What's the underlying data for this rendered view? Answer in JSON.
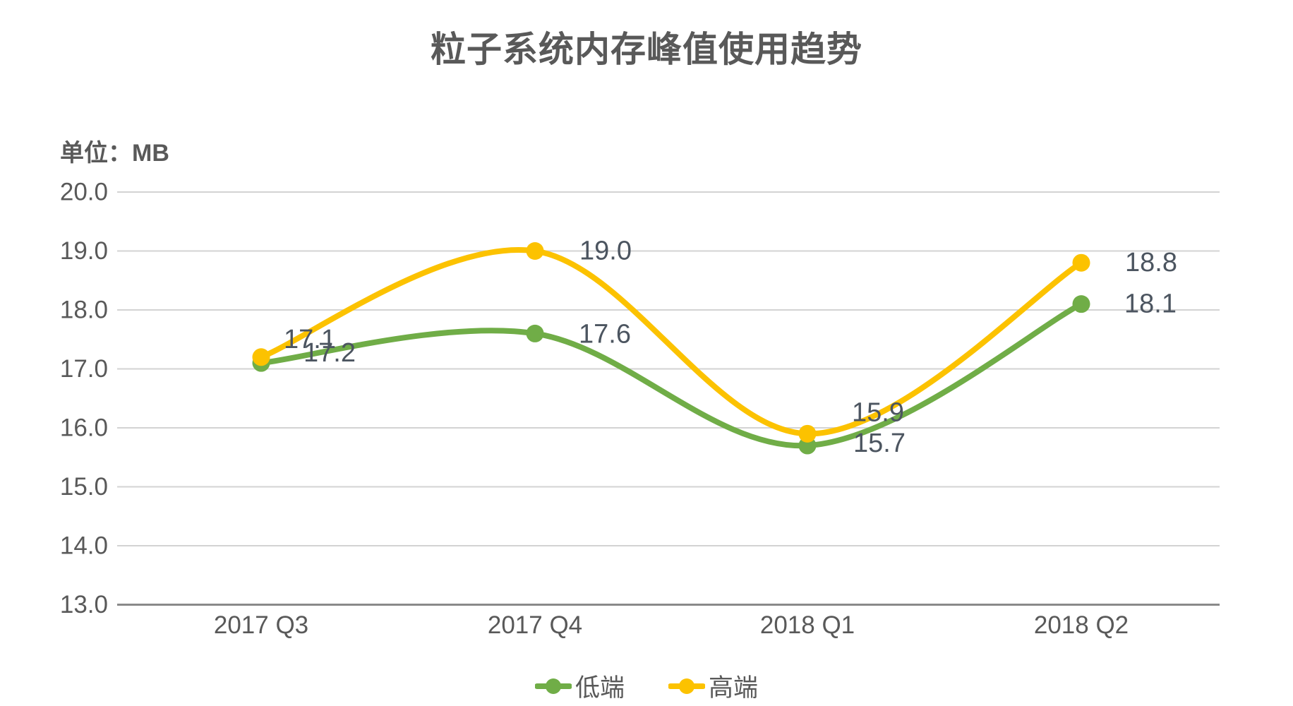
{
  "title": "粒子系统内存峰值使用趋势",
  "unit_label": "单位：MB",
  "colors": {
    "low": "#70AD47",
    "high": "#FCC200",
    "grid": "#D3D3D3",
    "axis": "#8A8A8A",
    "text": "#595959",
    "value_label": "#4C5560"
  },
  "chart_data": {
    "type": "line",
    "title": "粒子系统内存峰值使用趋势",
    "ylabel": "单位：MB",
    "categories": [
      "2017 Q3",
      "2017 Q4",
      "2018 Q1",
      "2018 Q2"
    ],
    "series": [
      {
        "name": "低端",
        "color_key": "low",
        "values": [
          17.1,
          17.6,
          15.7,
          18.1
        ]
      },
      {
        "name": "高端",
        "color_key": "high",
        "values": [
          17.2,
          19.0,
          15.9,
          18.8
        ]
      }
    ],
    "ylim": [
      13.0,
      20.0
    ],
    "yticks": [
      "20.0",
      "19.0",
      "18.0",
      "17.0",
      "16.0",
      "15.0",
      "14.0",
      "13.0"
    ],
    "grid": true,
    "smooth": true,
    "point_labels": true,
    "legend_position": "bottom"
  }
}
